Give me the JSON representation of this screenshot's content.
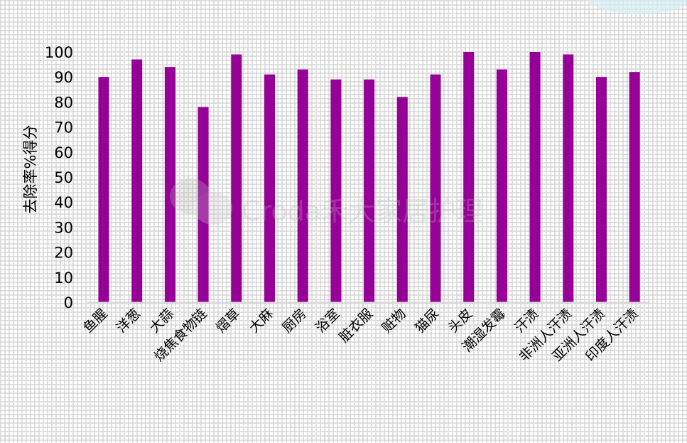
{
  "chart_data": {
    "type": "bar",
    "title": "",
    "xlabel": "",
    "ylabel": "去除率%得分",
    "ylim": [
      0,
      100
    ],
    "yticks": [
      0,
      10,
      20,
      30,
      40,
      50,
      60,
      70,
      80,
      90,
      100
    ],
    "grid": true,
    "categories": [
      "鱼腥",
      "洋葱",
      "大蒜",
      "烧焦食物链",
      "熠草",
      "大麻",
      "厨房",
      "浴室",
      "脏衣服",
      "赃物",
      "猫尿",
      "头皮",
      "潮湿发霉",
      "汗渍",
      "非洲人汗渍",
      "亚洲人汗渍",
      "印度人汗渍"
    ],
    "values": [
      90,
      97,
      94,
      78,
      99,
      91,
      93,
      89,
      89,
      82,
      91,
      100,
      93,
      100,
      99,
      90,
      92
    ],
    "bar_color": "#960096"
  },
  "watermark": "Croda禾大家居护理"
}
